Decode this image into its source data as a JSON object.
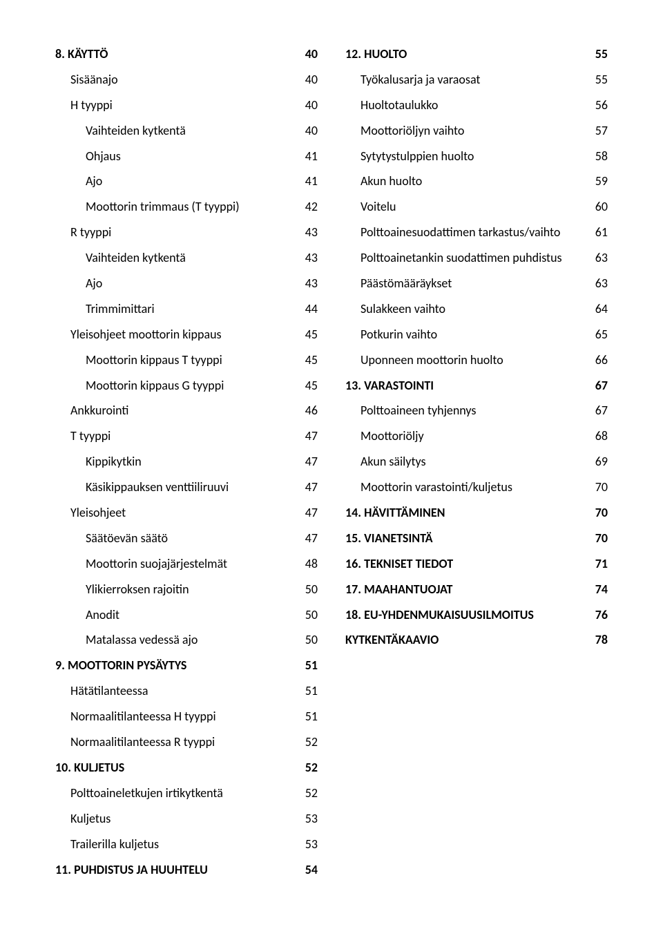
{
  "left": [
    {
      "label": "8. KÄYTTÖ",
      "page": 40,
      "bold": true,
      "indent": 0
    },
    {
      "label": "Sisäänajo",
      "page": 40,
      "bold": false,
      "indent": 1
    },
    {
      "label": "H tyyppi",
      "page": 40,
      "bold": false,
      "indent": 1
    },
    {
      "label": "Vaihteiden kytkentä",
      "page": 40,
      "bold": false,
      "indent": 2
    },
    {
      "label": "Ohjaus",
      "page": 41,
      "bold": false,
      "indent": 2
    },
    {
      "label": "Ajo",
      "page": 41,
      "bold": false,
      "indent": 2
    },
    {
      "label": "Moottorin trimmaus (T tyyppi)",
      "page": 42,
      "bold": false,
      "indent": 2
    },
    {
      "label": "R tyyppi",
      "page": 43,
      "bold": false,
      "indent": 1
    },
    {
      "label": "Vaihteiden kytkentä",
      "page": 43,
      "bold": false,
      "indent": 2
    },
    {
      "label": "Ajo",
      "page": 43,
      "bold": false,
      "indent": 2
    },
    {
      "label": "Trimmimittari",
      "page": 44,
      "bold": false,
      "indent": 2
    },
    {
      "label": "Yleisohjeet moottorin kippaus",
      "page": 45,
      "bold": false,
      "indent": 1
    },
    {
      "label": "Moottorin kippaus T tyyppi",
      "page": 45,
      "bold": false,
      "indent": 2
    },
    {
      "label": "Moottorin kippaus G tyyppi",
      "page": 45,
      "bold": false,
      "indent": 2
    },
    {
      "label": "Ankkurointi",
      "page": 46,
      "bold": false,
      "indent": 1
    },
    {
      "label": "T tyyppi",
      "page": 47,
      "bold": false,
      "indent": 1
    },
    {
      "label": "Kippikytkin",
      "page": 47,
      "bold": false,
      "indent": 2
    },
    {
      "label": "Käsikippauksen venttiiliruuvi",
      "page": 47,
      "bold": false,
      "indent": 2
    },
    {
      "label": "Yleisohjeet",
      "page": 47,
      "bold": false,
      "indent": 1
    },
    {
      "label": "Säätöevän säätö",
      "page": 47,
      "bold": false,
      "indent": 2
    },
    {
      "label": "Moottorin suojajärjestelmät",
      "page": 48,
      "bold": false,
      "indent": 2
    },
    {
      "label": "Ylikierroksen rajoitin",
      "page": 50,
      "bold": false,
      "indent": 2
    },
    {
      "label": "Anodit",
      "page": 50,
      "bold": false,
      "indent": 2
    },
    {
      "label": "Matalassa vedessä ajo",
      "page": 50,
      "bold": false,
      "indent": 2
    },
    {
      "label": "9. MOOTTORIN PYSÄYTYS",
      "page": 51,
      "bold": true,
      "indent": 0
    },
    {
      "label": "Hätätilanteessa",
      "page": 51,
      "bold": false,
      "indent": 1
    },
    {
      "label": "Normaalitilanteessa H tyyppi",
      "page": 51,
      "bold": false,
      "indent": 1
    },
    {
      "label": "Normaalitilanteessa R tyyppi",
      "page": 52,
      "bold": false,
      "indent": 1
    },
    {
      "label": "10. KULJETUS",
      "page": 52,
      "bold": true,
      "indent": 0
    },
    {
      "label": "Polttoaineletkujen irtikytkentä",
      "page": 52,
      "bold": false,
      "indent": 1
    },
    {
      "label": "Kuljetus",
      "page": 53,
      "bold": false,
      "indent": 1
    },
    {
      "label": "Trailerilla kuljetus",
      "page": 53,
      "bold": false,
      "indent": 1
    },
    {
      "label": "11. PUHDISTUS JA HUUHTELU",
      "page": 54,
      "bold": true,
      "indent": 0
    }
  ],
  "right": [
    {
      "label": "12. HUOLTO",
      "page": 55,
      "bold": true,
      "indent": 0
    },
    {
      "label": "Työkalusarja ja varaosat",
      "page": 55,
      "bold": false,
      "indent": 1
    },
    {
      "label": "Huoltotaulukko",
      "page": 56,
      "bold": false,
      "indent": 1
    },
    {
      "label": "Moottoriöljyn vaihto",
      "page": 57,
      "bold": false,
      "indent": 1
    },
    {
      "label": "Sytytystulppien huolto",
      "page": 58,
      "bold": false,
      "indent": 1
    },
    {
      "label": "Akun huolto",
      "page": 59,
      "bold": false,
      "indent": 1
    },
    {
      "label": "Voitelu",
      "page": 60,
      "bold": false,
      "indent": 1
    },
    {
      "label": "Polttoainesuodattimen tarkastus/vaihto",
      "page": 61,
      "bold": false,
      "indent": 1
    },
    {
      "label": "Polttoainetankin suodattimen puhdistus",
      "page": 63,
      "bold": false,
      "indent": 1
    },
    {
      "label": "Päästömääräykset",
      "page": 63,
      "bold": false,
      "indent": 1
    },
    {
      "label": "Sulakkeen vaihto",
      "page": 64,
      "bold": false,
      "indent": 1
    },
    {
      "label": "Potkurin vaihto",
      "page": 65,
      "bold": false,
      "indent": 1
    },
    {
      "label": "Uponneen moottorin huolto",
      "page": 66,
      "bold": false,
      "indent": 1
    },
    {
      "label": "13. VARASTOINTI",
      "page": 67,
      "bold": true,
      "indent": 0
    },
    {
      "label": "Polttoaineen tyhjennys",
      "page": 67,
      "bold": false,
      "indent": 1
    },
    {
      "label": "Moottoriöljy",
      "page": 68,
      "bold": false,
      "indent": 1
    },
    {
      "label": "Akun säilytys",
      "page": 69,
      "bold": false,
      "indent": 1
    },
    {
      "label": "Moottorin varastointi/kuljetus",
      "page": 70,
      "bold": false,
      "indent": 1
    },
    {
      "label": "14. HÄVITTÄMINEN",
      "page": 70,
      "bold": true,
      "indent": 0
    },
    {
      "label": "15. VIANETSINTÄ",
      "page": 70,
      "bold": true,
      "indent": 0
    },
    {
      "label": "16. TEKNISET TIEDOT",
      "page": 71,
      "bold": true,
      "indent": 0
    },
    {
      "label": "17. MAAHANTUOJAT",
      "page": 74,
      "bold": true,
      "indent": 0
    },
    {
      "label": "18. EU-YHDENMUKAISUUSILMOITUS",
      "page": 76,
      "bold": true,
      "indent": 0
    },
    {
      "label": "KYTKENTÄKAAVIO",
      "page": 78,
      "bold": true,
      "indent": 0
    }
  ]
}
